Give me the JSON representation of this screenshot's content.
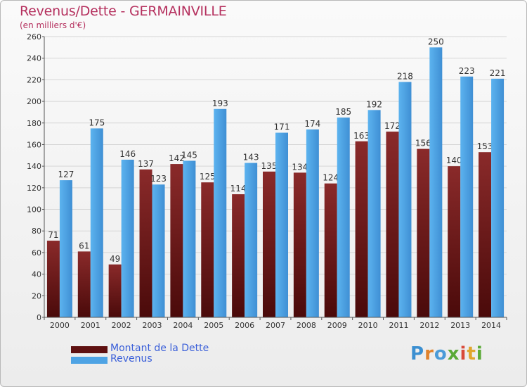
{
  "chart_title": "Revenus/Dette - GERMAINVILLE",
  "chart_subtitle": "(en milliers d'€)",
  "colors": {
    "dette": "#7a1c1c",
    "revenus": "#4ea3e4",
    "title": "#b5305e",
    "legend_text": "#3a5fd9"
  },
  "legend": {
    "dette_label": "Montant de la Dette",
    "revenus_label": "Revenus"
  },
  "logo": {
    "letters": [
      "P",
      "r",
      "o",
      "x",
      "i",
      "t",
      "i"
    ],
    "colors": [
      "#3b8fd1",
      "#e0822c",
      "#4a9bd8",
      "#5aaa36",
      "#d94a3a",
      "#e0a62c",
      "#5aaa36"
    ]
  },
  "chart_data": {
    "type": "bar",
    "title": "Revenus/Dette - GERMAINVILLE",
    "subtitle": "(en milliers d'€)",
    "categories": [
      "2000",
      "2001",
      "2002",
      "2003",
      "2004",
      "2005",
      "2006",
      "2007",
      "2008",
      "2009",
      "2010",
      "2011",
      "2012",
      "2013",
      "2014"
    ],
    "series": [
      {
        "name": "Montant de la Dette",
        "values": [
          71,
          61,
          49,
          137,
          142,
          125,
          114,
          135,
          134,
          124,
          163,
          172,
          156,
          140,
          153
        ]
      },
      {
        "name": "Revenus",
        "values": [
          127,
          175,
          146,
          123,
          145,
          193,
          143,
          171,
          174,
          185,
          192,
          218,
          250,
          223,
          221
        ]
      }
    ],
    "ylim": [
      0,
      260
    ],
    "yticks": [
      0,
      20,
      40,
      60,
      80,
      100,
      120,
      140,
      160,
      180,
      200,
      220,
      240,
      260
    ],
    "grid": true,
    "legend_position": "bottom-left"
  }
}
